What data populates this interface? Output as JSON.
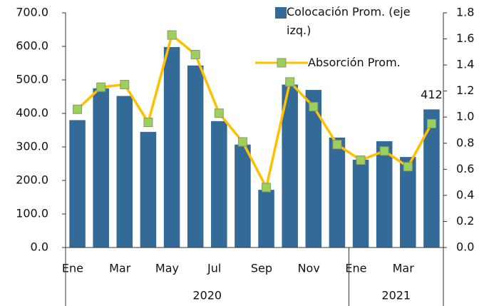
{
  "chart_data": {
    "type": "bar-line",
    "categories": [
      "Ene",
      null,
      "Mar",
      null,
      "May",
      null,
      "Jul",
      null,
      "Sep",
      null,
      "Nov",
      null,
      "Ene",
      null,
      "Mar",
      null
    ],
    "groups": [
      {
        "label": "2020",
        "span": 12
      },
      {
        "label": "2021",
        "span": 4
      }
    ],
    "series": [
      {
        "name": "Colocación Prom. (eje izq.)",
        "type": "bar",
        "color": "#346a97",
        "axis": "y",
        "values": [
          380,
          475,
          452,
          345,
          598,
          543,
          377,
          307,
          172,
          486,
          470,
          328,
          262,
          317,
          270,
          412
        ],
        "value_labels": [
          null,
          null,
          null,
          null,
          null,
          null,
          null,
          null,
          null,
          null,
          null,
          null,
          null,
          null,
          null,
          "412"
        ]
      },
      {
        "name": "Absorción Prom.",
        "type": "line",
        "color": "#ffc000",
        "marker_color": "#9ccf5b",
        "axis": "y2",
        "values": [
          1.06,
          1.23,
          1.25,
          0.96,
          1.63,
          1.48,
          1.03,
          0.81,
          0.46,
          1.27,
          1.08,
          0.79,
          0.67,
          0.74,
          0.62,
          0.95
        ]
      }
    ],
    "ylim": [
      0,
      700
    ],
    "yticks": [
      {
        "value": 0,
        "label": "0.0"
      },
      {
        "value": 100,
        "label": "100.0"
      },
      {
        "value": 200,
        "label": "200.0"
      },
      {
        "value": 300,
        "label": "300.0"
      },
      {
        "value": 400,
        "label": "400.0"
      },
      {
        "value": 500,
        "label": "500.0"
      },
      {
        "value": 600,
        "label": "600.0"
      },
      {
        "value": 700,
        "label": "700.0"
      }
    ],
    "y2lim": [
      0,
      1.8
    ],
    "y2ticks": [
      {
        "value": 0,
        "label": "0.0"
      },
      0.2,
      0.4,
      0.6,
      0.8,
      {
        "value": 1,
        "label": "1.0"
      },
      1.2,
      1.4,
      1.6,
      1.8
    ],
    "grid": false
  }
}
